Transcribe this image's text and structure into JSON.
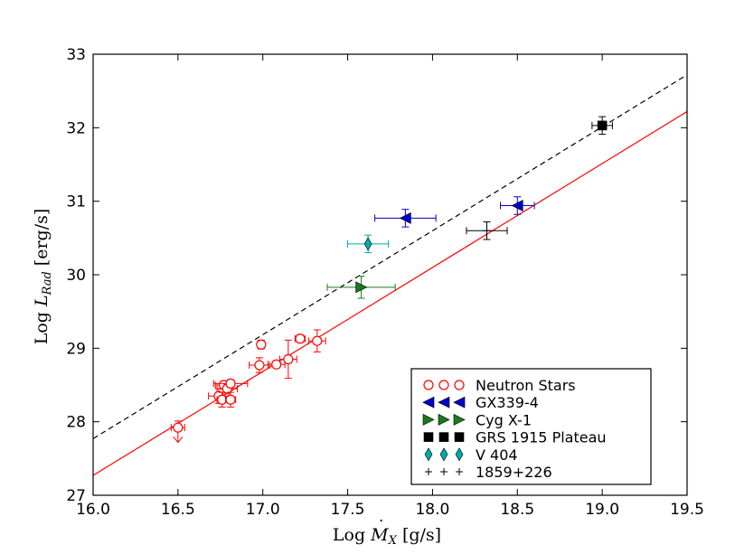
{
  "chart_data": {
    "type": "scatter",
    "title": "",
    "xlabel": "Log Ṁ_X [g/s]",
    "ylabel": "Log L_Rad [erg/s]",
    "xlabel_parts": {
      "prefix": "Log ",
      "symbol": "M",
      "sub": "X",
      "unit": " [g/s]"
    },
    "ylabel_parts": {
      "prefix": "Log ",
      "symbol": "L",
      "sub": "Rad",
      "unit": " [erg/s]"
    },
    "xlim": [
      16.0,
      19.5
    ],
    "ylim": [
      27,
      33
    ],
    "xticks": [
      "16.0",
      "16.5",
      "17.0",
      "17.5",
      "18.0",
      "18.5",
      "19.0",
      "19.5"
    ],
    "yticks": [
      "27",
      "28",
      "29",
      "30",
      "31",
      "32",
      "33"
    ],
    "grid": false,
    "legend_position": "lower-right",
    "lines": [
      {
        "name": "fit",
        "style": "solid",
        "color": "#ff0000",
        "x": [
          16.0,
          19.5
        ],
        "y": [
          27.27,
          32.22
        ]
      },
      {
        "name": "offset fit",
        "style": "dashed",
        "color": "#000000",
        "x": [
          16.0,
          19.5
        ],
        "y": [
          27.77,
          32.72
        ]
      }
    ],
    "series": [
      {
        "name": "Neutron Stars",
        "marker": "circle-open",
        "color": "#ff0000",
        "points": [
          {
            "x": 16.5,
            "y": 27.92,
            "xerr": 0.04,
            "yerr": 0.09,
            "upper_limit": true
          },
          {
            "x": 16.74,
            "y": 28.35,
            "xerr": 0.06,
            "yerr": 0.1
          },
          {
            "x": 16.76,
            "y": 28.3,
            "xerr": 0.03,
            "yerr": 0.1
          },
          {
            "x": 16.77,
            "y": 28.5,
            "xerr": 0.05,
            "yerr": 0.05
          },
          {
            "x": 16.79,
            "y": 28.45,
            "xerr": 0.06,
            "yerr": 0.06
          },
          {
            "x": 16.81,
            "y": 28.52,
            "xerr": 0.1,
            "yerr": 0.05
          },
          {
            "x": 16.81,
            "y": 28.3,
            "xerr": 0.03,
            "yerr": 0.1
          },
          {
            "x": 16.98,
            "y": 28.77,
            "xerr": 0.06,
            "yerr": 0.1
          },
          {
            "x": 16.99,
            "y": 29.05,
            "xerr": 0.02,
            "yerr": 0.06
          },
          {
            "x": 17.08,
            "y": 28.78,
            "xerr": 0.05,
            "yerr": 0.05
          },
          {
            "x": 17.15,
            "y": 28.85,
            "xerr": 0.05,
            "yerr": 0.26
          },
          {
            "x": 17.22,
            "y": 29.13,
            "xerr": 0.03,
            "yerr": 0.05
          },
          {
            "x": 17.32,
            "y": 29.1,
            "xerr": 0.05,
            "yerr": 0.15
          }
        ]
      },
      {
        "name": "GX339-4",
        "marker": "triangle-left",
        "color": "#0000cc",
        "points": [
          {
            "x": 17.84,
            "y": 30.77,
            "xerr": 0.18,
            "yerr": 0.12
          },
          {
            "x": 18.5,
            "y": 30.94,
            "xerr": 0.1,
            "yerr": 0.12
          }
        ]
      },
      {
        "name": "Cyg X-1",
        "marker": "triangle-right",
        "color": "#1a7a1a",
        "points": [
          {
            "x": 17.58,
            "y": 29.83,
            "xerr": 0.2,
            "yerr": 0.15
          }
        ]
      },
      {
        "name": "GRS 1915 Plateau",
        "marker": "square",
        "color": "#000000",
        "points": [
          {
            "x": 19.0,
            "y": 32.03,
            "xerr": 0.06,
            "yerr": 0.12
          }
        ]
      },
      {
        "name": "V 404",
        "marker": "diamond",
        "color": "#00aaaa",
        "points": [
          {
            "x": 17.62,
            "y": 30.42,
            "xerr": 0.12,
            "yerr": 0.12
          }
        ]
      },
      {
        "name": "1859+226",
        "marker": "plus",
        "color": "#000000",
        "points": [
          {
            "x": 18.32,
            "y": 30.6,
            "xerr": 0.12,
            "yerr": 0.12
          }
        ]
      }
    ]
  }
}
